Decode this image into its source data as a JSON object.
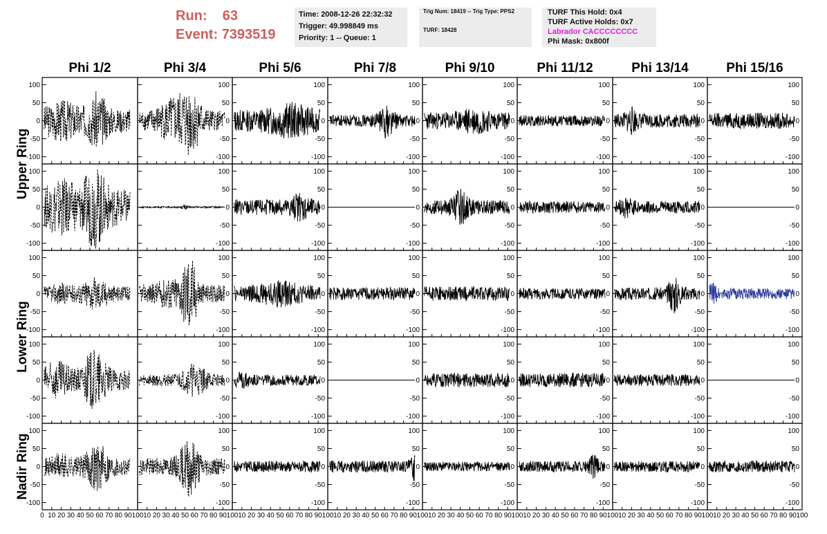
{
  "header": {
    "run_label": "Run:",
    "run_value": "63",
    "event_label": "Event:",
    "event_value": "7393519"
  },
  "info_box_1": {
    "time": "Time: 2008-12-26 22:32:32",
    "trigger": "Trigger: 49.998849 ms",
    "priority": "Priority: 1 -- Queue: 1"
  },
  "info_box_2": {
    "trig": "Trig Num: 18419 -- Trig Type: PPS2",
    "turf": "TURF: 18428"
  },
  "info_box_3": {
    "this_hold": "TURF This Hold: 0x4",
    "active_holds": "TURF Active Holds: 0x7",
    "labrador": "Labrador CACCCCCCCC",
    "phi_mask": "Phi Mask: 0x800f"
  },
  "colors": {
    "header_red": "#cf5e5e",
    "labrador_pink": "#e21ce2",
    "trace_black": "#000000",
    "trace_blue": "#2b3a9a",
    "box_gray": "#ececec"
  },
  "chart_data": {
    "type": "line",
    "columns": [
      "Phi 1/2",
      "Phi 3/4",
      "Phi 5/6",
      "Phi 7/8",
      "Phi 9/10",
      "Phi 11/12",
      "Phi 13/14",
      "Phi 15/16"
    ],
    "rows": [
      "Upper Ring",
      "Lower Ring",
      "Nadir Ring"
    ],
    "row_groups": [
      {
        "label": "Upper Ring",
        "span": 2
      },
      {
        "label": "Lower Ring",
        "span": 2
      },
      {
        "label": "Nadir Ring",
        "span": 1
      }
    ],
    "xlim": [
      0,
      100
    ],
    "ylim": [
      -120,
      120
    ],
    "xticks": [
      0,
      10,
      20,
      30,
      40,
      50,
      60,
      70,
      80,
      90,
      100
    ],
    "x_tick_labels": [
      "0",
      "10",
      "20",
      "30",
      "40",
      "50",
      "60",
      "70",
      "80",
      "90",
      "100"
    ],
    "yticks": [
      -100,
      -50,
      0,
      50,
      100
    ],
    "y_tick_labels": [
      "-100",
      "-50",
      "0",
      "50",
      "100"
    ],
    "x_visible_range": [
      2,
      92
    ],
    "panel_traces": [
      [
        {
          "amp": 30,
          "style": "dashed",
          "color": "black",
          "bursts": [
            [
              58,
              45,
              10
            ],
            [
              22,
              25,
              18
            ]
          ]
        },
        {
          "amp": 25,
          "style": "dashed",
          "color": "black",
          "bursts": [
            [
              55,
              60,
              12
            ],
            [
              35,
              30,
              15
            ]
          ]
        },
        {
          "amp": 28,
          "style": "solid",
          "color": "black",
          "bursts": [
            [
              60,
              20,
              20
            ]
          ]
        },
        {
          "amp": 15,
          "style": "solid",
          "color": "black",
          "bursts": [
            [
              62,
              30,
              8
            ]
          ]
        },
        {
          "amp": 22,
          "style": "solid",
          "color": "black",
          "bursts": [
            [
              55,
              15,
              15
            ]
          ]
        },
        {
          "amp": 14,
          "style": "solid",
          "color": "black",
          "bursts": []
        },
        {
          "amp": 18,
          "style": "solid",
          "color": "black",
          "bursts": [
            [
              20,
              20,
              6
            ]
          ]
        },
        {
          "amp": 20,
          "style": "solid",
          "color": "black",
          "bursts": []
        }
      ],
      [
        {
          "amp": 45,
          "style": "dashed",
          "color": "black",
          "bursts": [
            [
              55,
              60,
              12
            ],
            [
              20,
              30,
              15
            ]
          ]
        },
        {
          "amp": 2,
          "style": "solid",
          "color": "black",
          "bursts": [
            [
              50,
              5,
              3
            ]
          ]
        },
        {
          "amp": 20,
          "style": "solid",
          "color": "black",
          "bursts": [
            [
              70,
              18,
              10
            ]
          ]
        },
        {
          "amp": 0,
          "style": "flat",
          "color": "black",
          "bursts": []
        },
        {
          "amp": 18,
          "style": "solid",
          "color": "black",
          "bursts": [
            [
              40,
              30,
              8
            ]
          ]
        },
        {
          "amp": 15,
          "style": "solid",
          "color": "black",
          "bursts": []
        },
        {
          "amp": 16,
          "style": "solid",
          "color": "black",
          "bursts": [
            [
              15,
              15,
              6
            ]
          ]
        },
        {
          "amp": 0,
          "style": "flat",
          "color": "black",
          "bursts": []
        }
      ],
      [
        {
          "amp": 18,
          "style": "dashed",
          "color": "black",
          "bursts": [
            [
              55,
              25,
              15
            ],
            [
              20,
              10,
              10
            ]
          ]
        },
        {
          "amp": 22,
          "style": "dashed",
          "color": "black",
          "bursts": [
            [
              55,
              80,
              8
            ],
            [
              35,
              20,
              15
            ]
          ]
        },
        {
          "amp": 20,
          "style": "solid",
          "color": "black",
          "bursts": [
            [
              50,
              15,
              20
            ]
          ]
        },
        {
          "amp": 16,
          "style": "solid",
          "color": "black",
          "bursts": []
        },
        {
          "amp": 18,
          "style": "solid",
          "color": "black",
          "bursts": []
        },
        {
          "amp": 14,
          "style": "solid",
          "color": "black",
          "bursts": []
        },
        {
          "amp": 16,
          "style": "solid",
          "color": "black",
          "bursts": [
            [
              65,
              35,
              6
            ]
          ]
        },
        {
          "amp": 14,
          "style": "solid",
          "color": "blue",
          "bursts": [
            [
              5,
              15,
              6
            ]
          ]
        }
      ],
      [
        {
          "amp": 25,
          "style": "dashed",
          "color": "black",
          "bursts": [
            [
              55,
              55,
              12
            ],
            [
              15,
              25,
              15
            ]
          ]
        },
        {
          "amp": 15,
          "style": "dashed",
          "color": "black",
          "bursts": [
            [
              60,
              30,
              12
            ]
          ]
        },
        {
          "amp": 14,
          "style": "solid",
          "color": "black",
          "bursts": [
            [
              10,
              8,
              10
            ]
          ]
        },
        {
          "amp": 0,
          "style": "flat",
          "color": "black",
          "bursts": []
        },
        {
          "amp": 18,
          "style": "solid",
          "color": "black",
          "bursts": []
        },
        {
          "amp": 18,
          "style": "solid",
          "color": "black",
          "bursts": []
        },
        {
          "amp": 15,
          "style": "solid",
          "color": "black",
          "bursts": []
        },
        {
          "amp": 0,
          "style": "flat",
          "color": "black",
          "bursts": []
        }
      ],
      [
        {
          "amp": 22,
          "style": "dashed",
          "color": "black",
          "bursts": [
            [
              58,
              40,
              12
            ],
            [
              20,
              15,
              10
            ]
          ]
        },
        {
          "amp": 22,
          "style": "dashed",
          "color": "black",
          "bursts": [
            [
              55,
              55,
              10
            ]
          ]
        },
        {
          "amp": 14,
          "style": "solid",
          "color": "black",
          "bursts": []
        },
        {
          "amp": 15,
          "style": "solid",
          "color": "black",
          "bursts": [
            [
              92,
              25,
              4
            ]
          ]
        },
        {
          "amp": 12,
          "style": "solid",
          "color": "black",
          "bursts": []
        },
        {
          "amp": 14,
          "style": "solid",
          "color": "black",
          "bursts": [
            [
              80,
              20,
              5
            ]
          ]
        },
        {
          "amp": 14,
          "style": "solid",
          "color": "black",
          "bursts": []
        },
        {
          "amp": 15,
          "style": "solid",
          "color": "black",
          "bursts": []
        }
      ]
    ]
  }
}
